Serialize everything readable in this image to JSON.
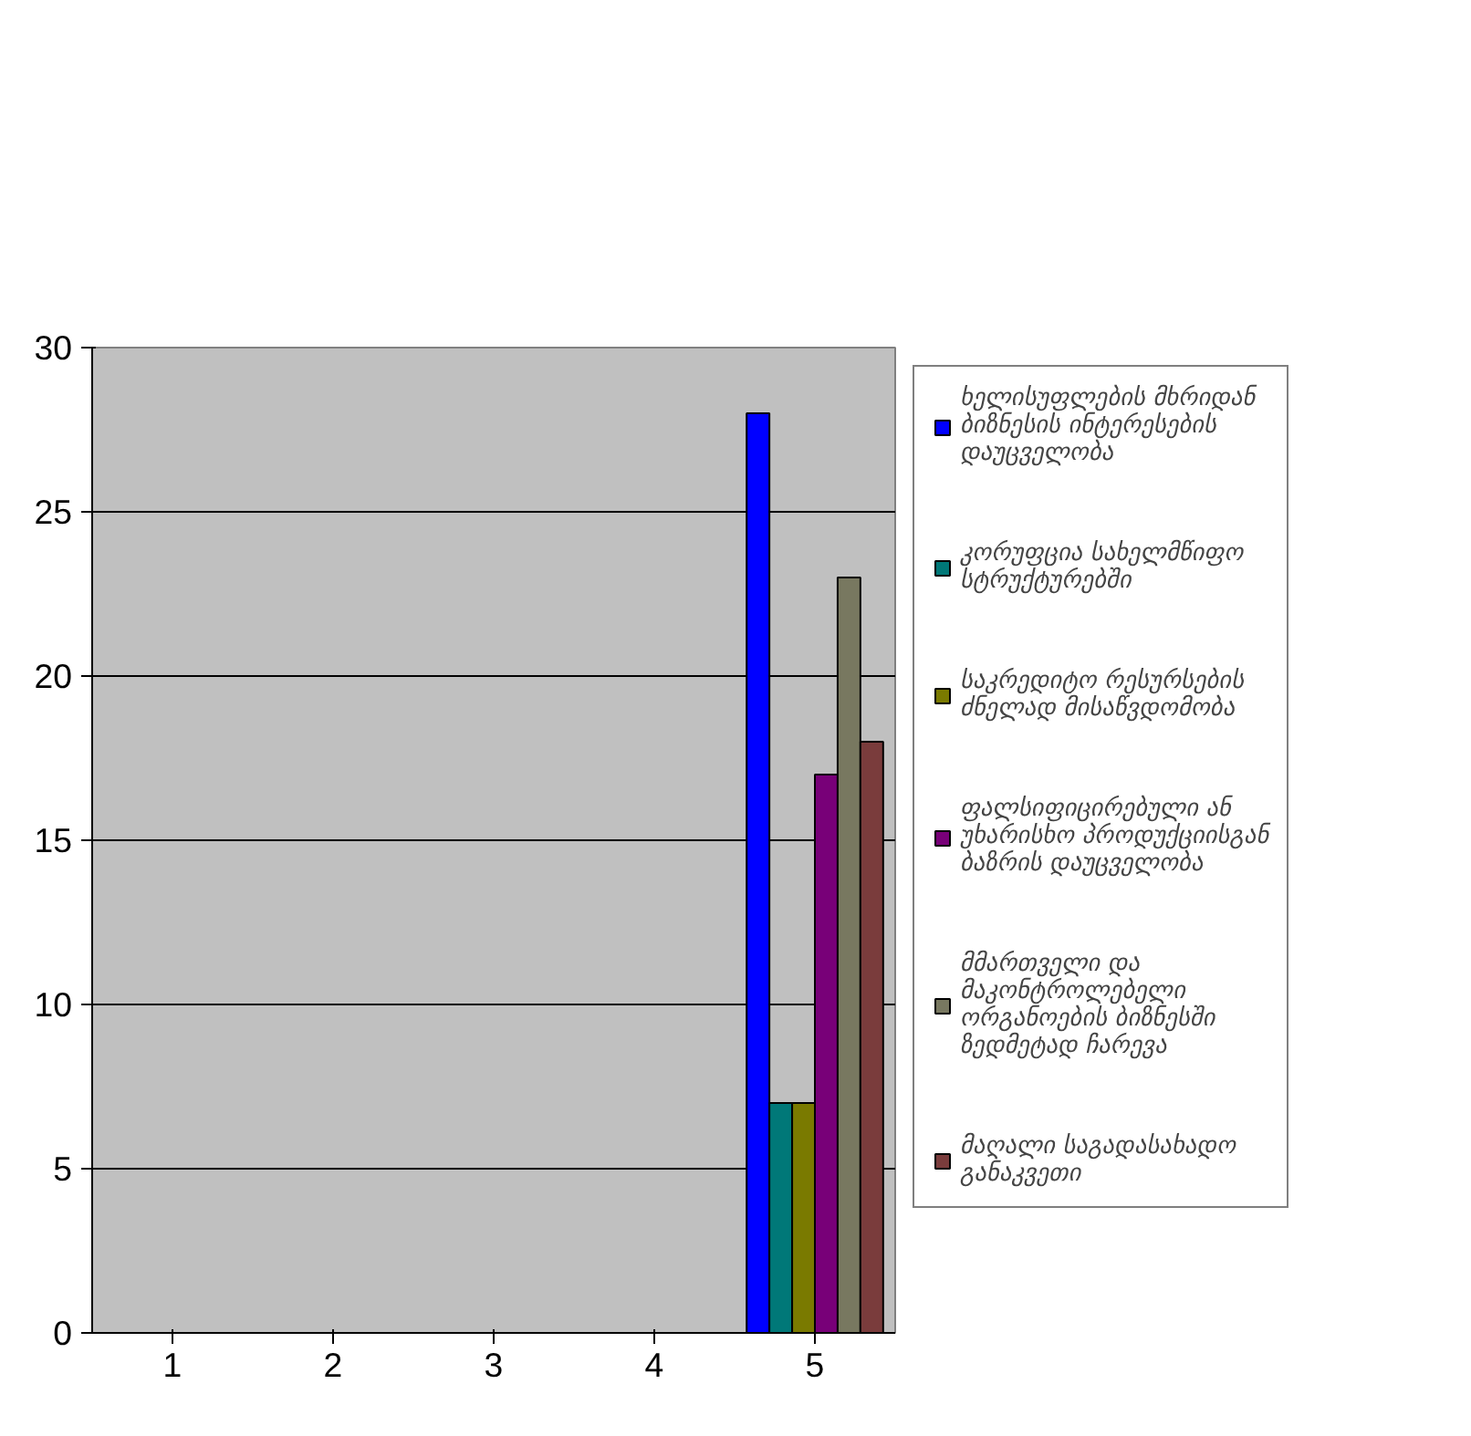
{
  "chart_data": {
    "type": "bar",
    "categories": [
      "1",
      "2",
      "3",
      "4",
      "5"
    ],
    "series": [
      {
        "name": "ხელისუფლების მხრიდან ბიზნესის ინტერესების დაუცველობა",
        "color": "#0000ff",
        "values": [
          null,
          null,
          null,
          null,
          28
        ]
      },
      {
        "name": "კორუფცია სახელმწიფო სტრუქტურებში",
        "color": "#007878",
        "values": [
          null,
          null,
          null,
          null,
          7
        ]
      },
      {
        "name": "საკრედიტო რესურსების ძნელად მისაწვდომობა",
        "color": "#7a7a00",
        "values": [
          null,
          null,
          null,
          null,
          7
        ]
      },
      {
        "name": "ფალსიფიცირებული ან უხარისხო პროდუქციისგან ბაზრის დაუცველობა",
        "color": "#780078",
        "values": [
          null,
          null,
          null,
          null,
          17
        ]
      },
      {
        "name": "მმართველი და მაკონტროლებელი ორგანოების ბიზნესში ზედმეტად ჩარევა",
        "color": "#787860",
        "values": [
          null,
          null,
          null,
          null,
          23
        ]
      },
      {
        "name": "მაღალი საგადასახადო განაკვეთი",
        "color": "#7a3c3c",
        "values": [
          null,
          null,
          null,
          null,
          18
        ]
      }
    ],
    "ylim": [
      0,
      30
    ],
    "yticks": [
      0,
      5,
      10,
      15,
      20,
      25,
      30
    ],
    "grid": "y",
    "legend": "right"
  }
}
